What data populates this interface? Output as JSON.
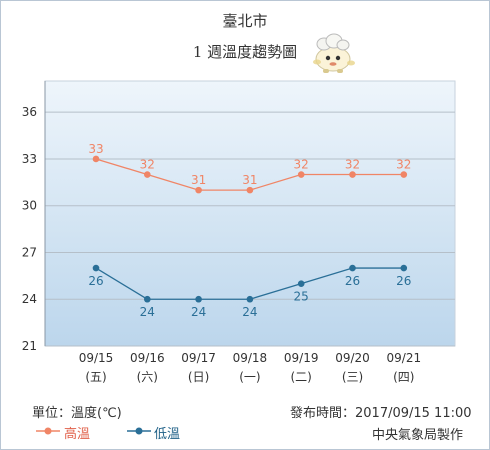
{
  "header": {
    "title": "臺北市",
    "subtitle": "1 週溫度趨勢圖",
    "mascot_icon": "weather-mascot-icon"
  },
  "footer": {
    "unit_label": "單位：溫度(℃)",
    "publish_label": "發布時間：2017/09/15 11:00",
    "producer": "中央氣象局製作"
  },
  "legend": {
    "high_label": "高溫",
    "low_label": "低溫"
  },
  "colors": {
    "high": "#f08566",
    "low": "#2a6f97",
    "plot_top": "#eef5fb",
    "plot_bottom": "#bcd6ec",
    "grid": "#b5bfc9"
  },
  "chart_data": {
    "type": "line",
    "categories": [
      "09/15",
      "09/16",
      "09/17",
      "09/18",
      "09/19",
      "09/20",
      "09/21"
    ],
    "weekdays": [
      "(五)",
      "(六)",
      "(日)",
      "(一)",
      "(二)",
      "(三)",
      "(四)"
    ],
    "series": [
      {
        "name": "高溫",
        "values": [
          33,
          32,
          31,
          31,
          32,
          32,
          32
        ]
      },
      {
        "name": "低溫",
        "values": [
          26,
          24,
          24,
          24,
          25,
          26,
          26
        ]
      }
    ],
    "yticks": [
      21,
      24,
      27,
      30,
      33,
      36
    ],
    "ylim": [
      21,
      38
    ],
    "grid": true,
    "legend": "bottom-left"
  }
}
